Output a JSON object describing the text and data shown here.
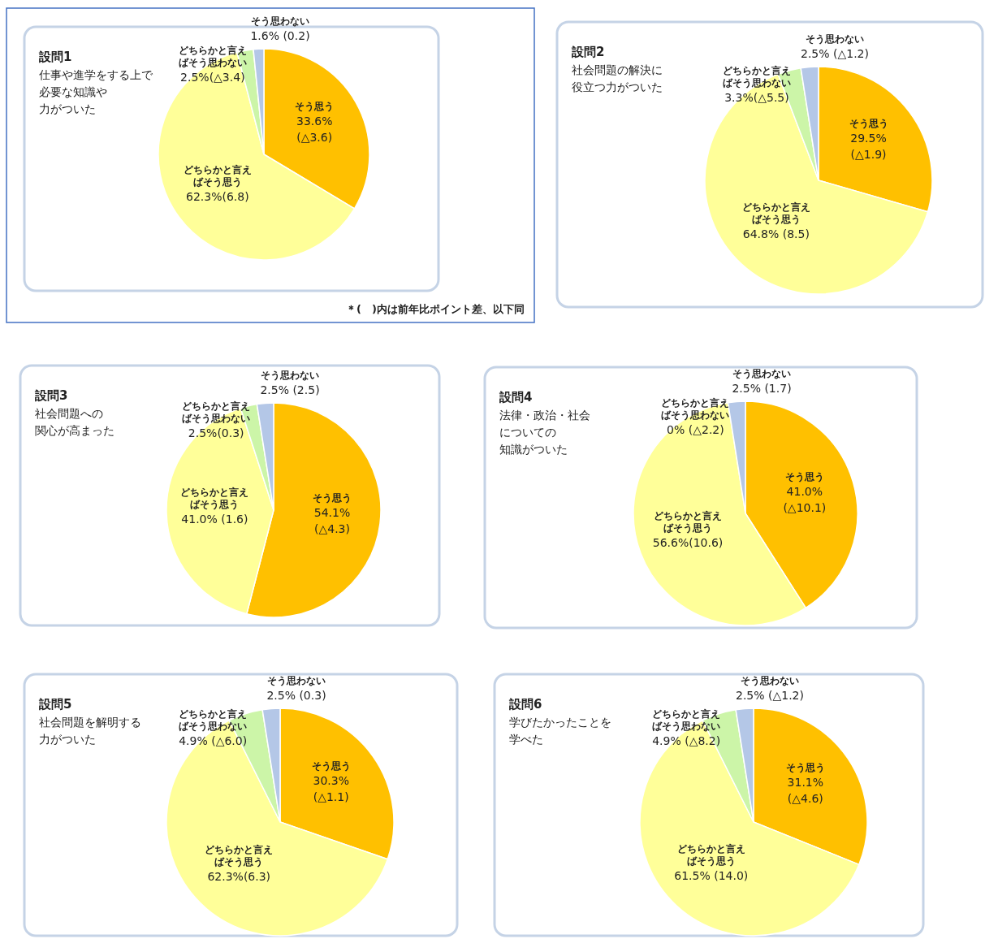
{
  "chart_data": [
    {
      "type": "pie",
      "title": "設問1",
      "subtitle": "仕事や進学をする上で必要な知識や力がついた",
      "categories": [
        "そう思う",
        "どちらかと言えばそう思う",
        "どちらかと言えばそう思わない",
        "そう思わない"
      ],
      "values": [
        33.6,
        62.3,
        2.5,
        1.6
      ],
      "value_labels": [
        "33.6%\n(△3.6)",
        "62.3%(6.8)",
        "2.5%(△3.4)",
        "1.6% (0.2)"
      ],
      "colors": [
        "#ffc000",
        "#ffff99",
        "#ccf5a8",
        "#b4c7e7"
      ],
      "annotations": [
        "＊(　)内は前年比ポイント差、以下同"
      ]
    },
    {
      "type": "pie",
      "title": "設問2",
      "subtitle": "社会問題の解決に役立つ力がついた",
      "categories": [
        "そう思う",
        "どちらかと言えばそう思う",
        "どちらかと言えばそう思わない",
        "そう思わない"
      ],
      "values": [
        29.5,
        64.8,
        3.3,
        2.5
      ],
      "value_labels": [
        "29.5%\n(△1.9)",
        "64.8% (8.5)",
        "3.3%(△5.5)",
        "2.5% (△1.2)"
      ],
      "colors": [
        "#ffc000",
        "#ffff99",
        "#ccf5a8",
        "#b4c7e7"
      ]
    },
    {
      "type": "pie",
      "title": "設問3",
      "subtitle": "社会問題への関心が高まった",
      "categories": [
        "そう思う",
        "どちらかと言えばそう思う",
        "どちらかと言えばそう思わない",
        "そう思わない"
      ],
      "values": [
        54.1,
        41.0,
        2.5,
        2.5
      ],
      "value_labels": [
        "54.1%\n(△4.3)",
        "41.0% (1.6)",
        "2.5%(0.3)",
        "2.5% (2.5)"
      ],
      "colors": [
        "#ffc000",
        "#ffff99",
        "#ccf5a8",
        "#b4c7e7"
      ]
    },
    {
      "type": "pie",
      "title": "設問4",
      "subtitle": "法律・政治・社会についての知識がついた",
      "categories": [
        "そう思う",
        "どちらかと言えばそう思う",
        "どちらかと言えばそう思わない",
        "そう思わない"
      ],
      "values": [
        41.0,
        56.6,
        0,
        2.5
      ],
      "value_labels": [
        "41.0%\n(△10.1)",
        "56.6%(10.6)",
        "0% (△2.2)",
        "2.5% (1.7)"
      ],
      "colors": [
        "#ffc000",
        "#ffff99",
        "#ccf5a8",
        "#b4c7e7"
      ]
    },
    {
      "type": "pie",
      "title": "設問5",
      "subtitle": "社会問題を解明する力がついた",
      "categories": [
        "そう思う",
        "どちらかと言えばそう思う",
        "どちらかと言えばそう思わない",
        "そう思わない"
      ],
      "values": [
        30.3,
        62.3,
        4.9,
        2.5
      ],
      "value_labels": [
        "30.3%\n(△1.1)",
        "62.3%(6.3)",
        "4.9% (△6.0)",
        "2.5% (0.3)"
      ],
      "colors": [
        "#ffc000",
        "#ffff99",
        "#ccf5a8",
        "#b4c7e7"
      ]
    },
    {
      "type": "pie",
      "title": "設問6",
      "subtitle": "学びたかったことを学べた",
      "categories": [
        "そう思う",
        "どちらかと言えばそう思う",
        "どちらかと言えばそう思わない",
        "そう思わない"
      ],
      "values": [
        31.1,
        61.5,
        4.9,
        2.5
      ],
      "value_labels": [
        "31.1%\n(△4.6)",
        "61.5% (14.0)",
        "4.9% (△8.2)",
        "2.5% (△1.2)"
      ],
      "colors": [
        "#ffc000",
        "#ffff99",
        "#ccf5a8",
        "#b4c7e7"
      ]
    }
  ]
}
